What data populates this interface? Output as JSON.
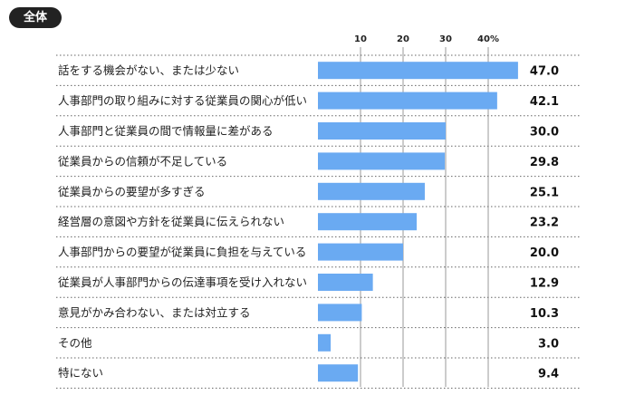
{
  "header": {
    "badge_label": "全体"
  },
  "chart_data": {
    "type": "bar",
    "orientation": "horizontal",
    "title": "",
    "xlabel": "",
    "ylabel": "",
    "xlim": [
      0,
      50
    ],
    "ticks": [
      10,
      20,
      30,
      40
    ],
    "tick_labels": [
      "10",
      "20",
      "30",
      "40%"
    ],
    "grid": true,
    "bar_color": "#6aaaf2",
    "categories": [
      "話をする機会がない、または少ない",
      "人事部門の取り組みに対する従業員の関心が低い",
      "人事部門と従業員の間で情報量に差がある",
      "従業員からの信頼が不足している",
      "従業員からの要望が多すぎる",
      "経営層の意図や方針を従業員に伝えられない",
      "人事部門からの要望が従業員に負担を与えている",
      "従業員が人事部門からの伝達事項を受け入れない",
      "意見がかみ合わない、または対立する",
      "その他",
      "特にない"
    ],
    "values": [
      47.0,
      42.1,
      30.0,
      29.8,
      25.1,
      23.2,
      20.0,
      12.9,
      10.3,
      3.0,
      9.4
    ],
    "value_labels": [
      "47.0",
      "42.1",
      "30.0",
      "29.8",
      "25.1",
      "23.2",
      "20.0",
      "12.9",
      "10.3",
      "3.0",
      "9.4"
    ]
  }
}
